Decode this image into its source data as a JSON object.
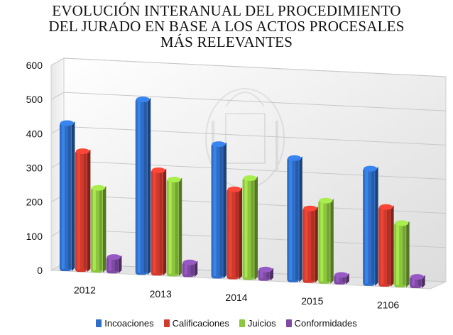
{
  "chart_data": {
    "type": "bar",
    "title": [
      "EVOLUCIÓN INTERANUAL DEL PROCEDIMIENTO",
      "DEL JURADO EN BASE A LOS ACTOS PROCESALES",
      "MÁS RELEVANTES"
    ],
    "categories": [
      "2012",
      "2013",
      "2014",
      "2015",
      "2106"
    ],
    "series": [
      {
        "name": "Incoaciones",
        "color": "#2f6ec8",
        "values": [
          435,
          515,
          395,
          365,
          345
        ]
      },
      {
        "name": "Calificaciones",
        "color": "#d23a2e",
        "values": [
          355,
          310,
          265,
          220,
          235
        ]
      },
      {
        "name": "Juicios",
        "color": "#8cc63f",
        "values": [
          250,
          285,
          300,
          245,
          190
        ]
      },
      {
        "name": "Conformidades",
        "color": "#7e4aa3",
        "values": [
          50,
          45,
          35,
          30,
          35
        ]
      }
    ],
    "ylim": [
      0,
      600
    ],
    "yticks": [
      0,
      100,
      200,
      300,
      400,
      500,
      600
    ],
    "grid": true,
    "legend": "bottom"
  }
}
